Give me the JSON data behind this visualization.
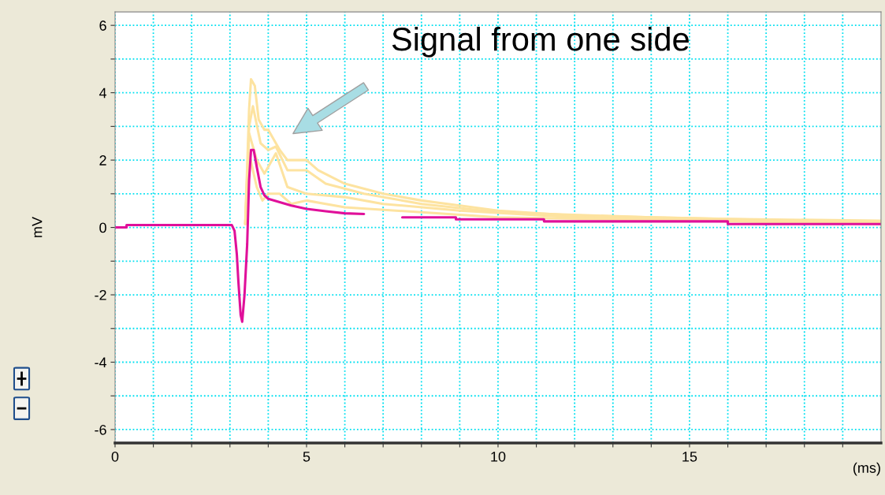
{
  "chart_data": {
    "type": "line",
    "ylabel": "mV",
    "xlabel": "(ms)",
    "xlim": [
      0,
      20
    ],
    "ylim": [
      -6.4,
      6.4
    ],
    "xticks": [
      0,
      {
        "value": 1,
        "label": null
      },
      {
        "value": 2,
        "label": null
      },
      {
        "value": 3,
        "label": null
      },
      {
        "value": 4,
        "label": null
      },
      5,
      {
        "value": 6,
        "label": null
      },
      {
        "value": 7,
        "label": null
      },
      {
        "value": 8,
        "label": null
      },
      {
        "value": 9,
        "label": null
      },
      10,
      {
        "value": 11,
        "label": null
      },
      {
        "value": 12,
        "label": null
      },
      {
        "value": 13,
        "label": null
      },
      {
        "value": 14,
        "label": null
      },
      15,
      {
        "value": 16,
        "label": null
      },
      {
        "value": 17,
        "label": null
      },
      {
        "value": 18,
        "label": null
      },
      {
        "value": 19,
        "label": null
      }
    ],
    "yticks": [
      -6,
      {
        "value": -5,
        "label": null
      },
      -4,
      {
        "value": -3,
        "label": null
      },
      -2,
      {
        "value": -1,
        "label": null
      },
      0,
      {
        "value": 1,
        "label": null
      },
      2,
      {
        "value": 3,
        "label": null
      },
      4,
      {
        "value": 5,
        "label": null
      },
      6
    ],
    "grid": true,
    "legend": false,
    "annotations": [
      "Signal from one side"
    ],
    "series": [
      {
        "color": "#fde3a0",
        "x": [
          3.4,
          3.5,
          3.55,
          3.65,
          3.75,
          3.9,
          4.0,
          4.3,
          4.5,
          5.0,
          5.3,
          6.0,
          7.0,
          8.0,
          9.0,
          10.0,
          12.0,
          16.0,
          20.0
        ],
        "values": [
          0.1,
          3.5,
          4.4,
          4.2,
          3.2,
          2.9,
          2.9,
          2.3,
          2.0,
          2.0,
          1.7,
          1.3,
          1.0,
          0.8,
          0.65,
          0.5,
          0.35,
          0.25,
          0.2
        ]
      },
      {
        "color": "#fde3a0",
        "x": [
          3.4,
          3.5,
          3.6,
          3.8,
          4.0,
          4.2,
          4.5,
          5.0,
          5.5,
          6.5,
          8.0,
          10.0,
          14.0,
          20.0
        ],
        "values": [
          0.1,
          3.0,
          3.6,
          2.5,
          2.3,
          2.4,
          1.7,
          1.7,
          1.3,
          1.0,
          0.7,
          0.45,
          0.3,
          0.15
        ]
      },
      {
        "color": "#fde3a0",
        "x": [
          3.4,
          3.5,
          3.7,
          3.9,
          4.2,
          4.5,
          5.0,
          6.0,
          7.0,
          9.0,
          12.0,
          20.0
        ],
        "values": [
          0.1,
          2.8,
          2.0,
          1.6,
          2.2,
          1.2,
          1.0,
          0.9,
          0.7,
          0.5,
          0.3,
          0.12
        ]
      },
      {
        "color": "#fde3a0",
        "x": [
          3.4,
          3.5,
          3.7,
          3.85,
          4.0,
          4.3,
          4.6,
          5.0,
          6.0,
          8.0,
          10.0,
          20.0
        ],
        "values": [
          0.1,
          2.2,
          1.2,
          0.8,
          1.0,
          1.0,
          0.7,
          0.8,
          0.6,
          0.45,
          0.3,
          0.1
        ]
      },
      {
        "color": "#e0109a",
        "x": [
          0,
          0.3,
          0.3,
          3.05,
          3.12,
          3.18,
          3.22,
          3.28,
          3.32,
          3.38,
          3.45,
          3.5,
          3.55,
          3.62,
          3.7,
          3.8,
          3.9,
          4.0,
          4.3,
          4.6,
          5.0,
          5.5,
          6.0,
          6.5,
          7.0,
          7.5,
          8.9,
          8.9,
          11.2,
          11.2,
          16.0,
          16.0,
          20.0
        ],
        "values": [
          0,
          0,
          0.07,
          0.07,
          -0.1,
          -0.8,
          -1.6,
          -2.6,
          -2.8,
          -2.0,
          -0.5,
          1.4,
          2.3,
          2.3,
          1.8,
          1.2,
          0.95,
          0.85,
          0.75,
          0.65,
          0.55,
          0.48,
          0.42,
          0.4,
          null,
          0.3,
          0.3,
          0.24,
          0.24,
          0.18,
          0.18,
          0.1,
          0.1
        ]
      }
    ]
  }
}
